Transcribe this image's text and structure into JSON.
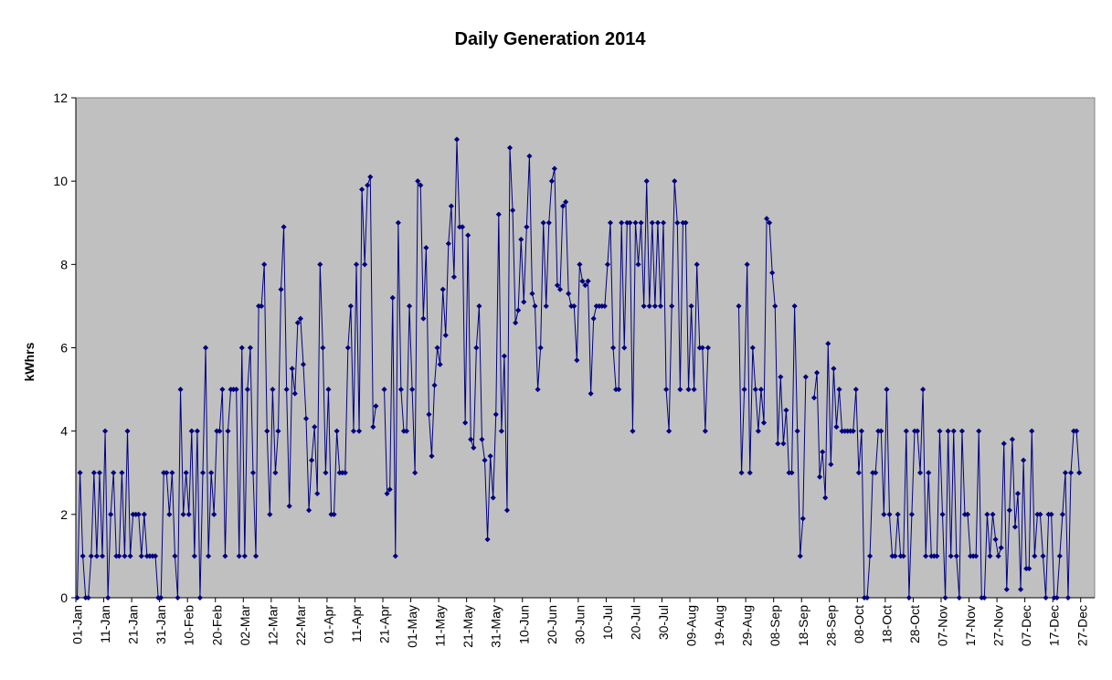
{
  "chart_data": {
    "type": "line",
    "title": "Daily Generation 2014",
    "xlabel": "",
    "ylabel": "kWhrs",
    "ylim": [
      0,
      12
    ],
    "yticks": [
      "0",
      "2",
      "4",
      "6",
      "8",
      "10",
      "12"
    ],
    "xticks": [
      "01-Jan",
      "11-Jan",
      "21-Jan",
      "31-Jan",
      "10-Feb",
      "20-Feb",
      "02-Mar",
      "12-Mar",
      "22-Mar",
      "01-Apr",
      "11-Apr",
      "21-Apr",
      "01-May",
      "11-May",
      "21-May",
      "31-May",
      "10-Jun",
      "20-Jun",
      "30-Jun",
      "10-Jul",
      "20-Jul",
      "30-Jul",
      "09-Aug",
      "19-Aug",
      "29-Aug",
      "08-Sep",
      "18-Sep",
      "28-Sep",
      "08-Oct",
      "18-Oct",
      "28-Oct",
      "07-Nov",
      "17-Nov",
      "27-Nov",
      "07-Dec",
      "17-Dec",
      "27-Dec"
    ],
    "grid": false,
    "legend": "none",
    "plot_background": "#c0c0c0",
    "series_color": "#000080",
    "series": [
      {
        "start": "01-Jan",
        "values": [
          0,
          3,
          1,
          0,
          0,
          1,
          3,
          1,
          3,
          1,
          4,
          0,
          2,
          3,
          1,
          1,
          3,
          1,
          4,
          1,
          2,
          2,
          2,
          1,
          2,
          1,
          1,
          1,
          1,
          0,
          0,
          3,
          3,
          2,
          3,
          1,
          0,
          5,
          2,
          3,
          2,
          4,
          1,
          4,
          0,
          3,
          6,
          1,
          3,
          2,
          4,
          4,
          5,
          1,
          4,
          5,
          5,
          5,
          1,
          6,
          1,
          5,
          6,
          3,
          1,
          7,
          7,
          8,
          4,
          2,
          5,
          3,
          4,
          7.4,
          8.9,
          5,
          2.2,
          5.5,
          4.9,
          6.6,
          6.7,
          5.6,
          4.3,
          2.1,
          3.3,
          4.1,
          2.5,
          8,
          6,
          3,
          5,
          2,
          2,
          4,
          3,
          3,
          3,
          6,
          7,
          4,
          8,
          4,
          9.8,
          8,
          9.9,
          10.1,
          4.1,
          4.6,
          null,
          null,
          5,
          2.5,
          2.6,
          7.2,
          1,
          9,
          5,
          4,
          4,
          7,
          5,
          3,
          10,
          9.9,
          6.7,
          8.4,
          4.4,
          3.4,
          5.1,
          6,
          5.6,
          7.4,
          6.3,
          8.5,
          9.4,
          7.7,
          11,
          8.9,
          8.9,
          4.2,
          8.7,
          3.8,
          3.6,
          6,
          7,
          3.8,
          3.3,
          1.4,
          3.4,
          2.4,
          4.4,
          9.2,
          4,
          5.8,
          2.1,
          10.8,
          9.3,
          6.6,
          6.9,
          8.6,
          7.1,
          8.9,
          10.6,
          7.3,
          7,
          5,
          6,
          9,
          7,
          9,
          10,
          10.3,
          7.5,
          7.4,
          9.4,
          9.5,
          7.3,
          7,
          7,
          5.7,
          8,
          7.6,
          7.5,
          7.6,
          4.9,
          6.7,
          7,
          7,
          7,
          7,
          8,
          9,
          6,
          5,
          5,
          9,
          6,
          9,
          9,
          4,
          9,
          8,
          9,
          7,
          10,
          7,
          9,
          7,
          9,
          7,
          9,
          5,
          4,
          7,
          10,
          9,
          5,
          9,
          9,
          5,
          7,
          5,
          8,
          6,
          6,
          4,
          6,
          null,
          null,
          null,
          null,
          null,
          null,
          null,
          null,
          null,
          null,
          7,
          3,
          5,
          8,
          3,
          6,
          5,
          4,
          5,
          4.2,
          9.1,
          9,
          7.8,
          7,
          3.7,
          5.3,
          3.7,
          4.5,
          3,
          3,
          7,
          4,
          1,
          1.9,
          5.3,
          null,
          null,
          4.8,
          5.4,
          2.9,
          3.5,
          2.4,
          6.1,
          3.2,
          5.5,
          4.1,
          5,
          4,
          4,
          4,
          4,
          4,
          5,
          3,
          4,
          0,
          0,
          1,
          3,
          3,
          4,
          4,
          2,
          5,
          2,
          1,
          1,
          2,
          1,
          1,
          4,
          0,
          2,
          4,
          4,
          3,
          5,
          1,
          3,
          1,
          1,
          1,
          4,
          2,
          0,
          4,
          1,
          4,
          1,
          0,
          4,
          2,
          2,
          1,
          1,
          1,
          4,
          0,
          0,
          2,
          1,
          2,
          1.4,
          1,
          1.2,
          3.7,
          0.2,
          2.1,
          3.8,
          1.7,
          2.5,
          0.2,
          3.3,
          0.7,
          0.7,
          4,
          1,
          2,
          2,
          1,
          0,
          2,
          2,
          0,
          0,
          1,
          2,
          3,
          0,
          3,
          4,
          4,
          3
        ]
      }
    ]
  }
}
